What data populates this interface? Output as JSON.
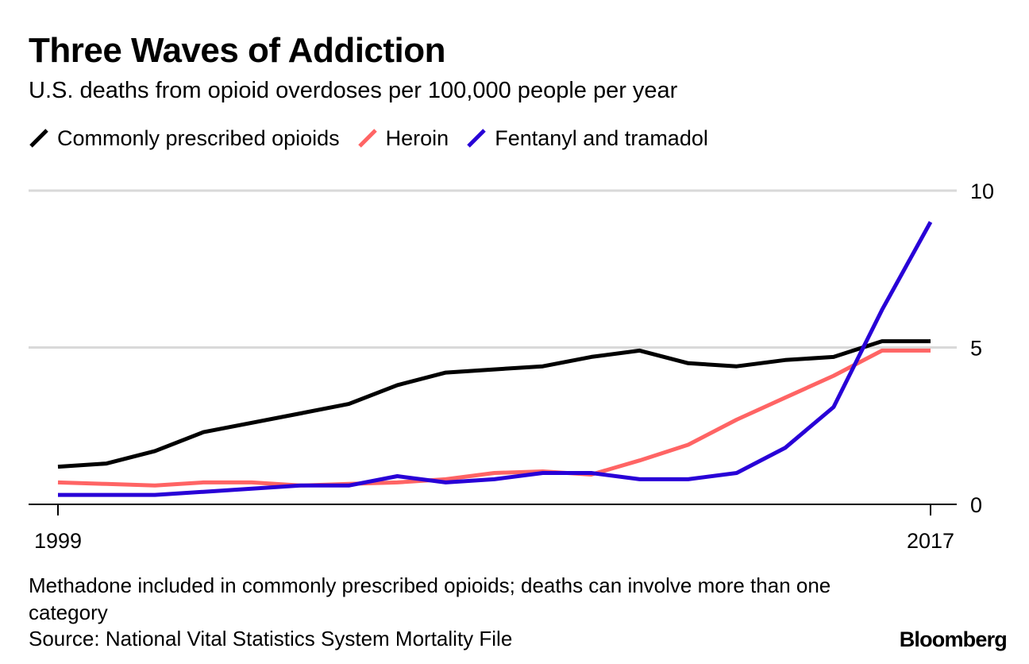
{
  "header": {
    "title": "Three Waves of Addiction",
    "subtitle": "U.S. deaths from opioid overdoses per 100,000 people per year"
  },
  "footer": {
    "note": "Methadone included in commonly prescribed opioids; deaths can involve more than one category",
    "source": "Source: National Vital Statistics System Mortality File",
    "brand": "Bloomberg"
  },
  "chart_data": {
    "type": "line",
    "title": "Three Waves of Addiction",
    "subtitle": "U.S. deaths from opioid overdoses per 100,000 people per year",
    "x": [
      1999,
      2000,
      2001,
      2002,
      2003,
      2004,
      2005,
      2006,
      2007,
      2008,
      2009,
      2010,
      2011,
      2012,
      2013,
      2014,
      2015,
      2016,
      2017
    ],
    "x_tick_labels": [
      "1999",
      "2017"
    ],
    "y_ticks": [
      0,
      5,
      10
    ],
    "y_tick_labels": [
      "0",
      "5",
      "10"
    ],
    "ylim": [
      0,
      10
    ],
    "grid": true,
    "legend_position": "top-left",
    "series": [
      {
        "name": "Commonly prescribed opioids",
        "color": "#000000",
        "values": [
          1.2,
          1.3,
          1.7,
          2.3,
          2.6,
          2.9,
          3.2,
          3.8,
          4.2,
          4.3,
          4.4,
          4.7,
          4.9,
          4.5,
          4.4,
          4.6,
          4.7,
          5.2,
          5.2
        ]
      },
      {
        "name": "Heroin",
        "color": "#ff6464",
        "values": [
          0.7,
          0.65,
          0.6,
          0.7,
          0.7,
          0.6,
          0.65,
          0.7,
          0.8,
          1.0,
          1.05,
          0.95,
          1.4,
          1.9,
          2.7,
          3.4,
          4.1,
          4.9,
          4.9
        ]
      },
      {
        "name": "Fentanyl and tramadol",
        "color": "#2800d7",
        "values": [
          0.3,
          0.3,
          0.3,
          0.4,
          0.5,
          0.6,
          0.6,
          0.9,
          0.7,
          0.8,
          1.0,
          1.0,
          0.8,
          0.8,
          1.0,
          1.8,
          3.1,
          6.2,
          9.0
        ]
      }
    ]
  }
}
